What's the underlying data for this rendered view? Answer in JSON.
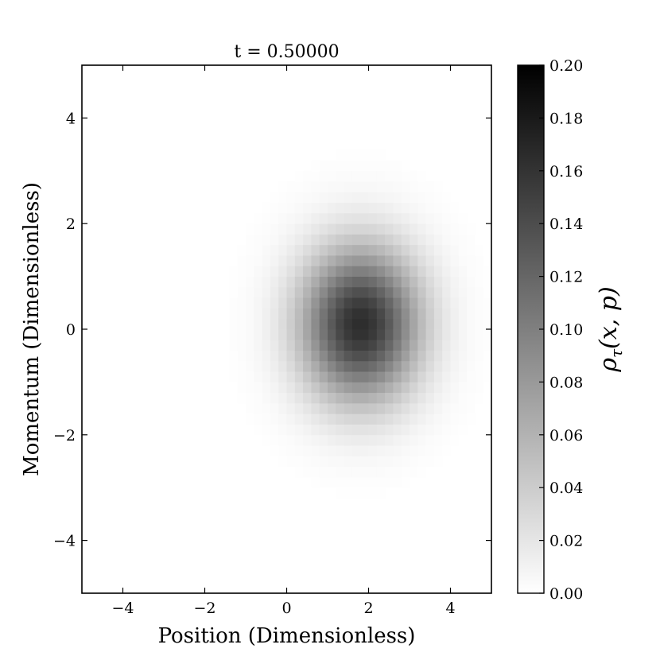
{
  "chart_data": {
    "type": "heatmap",
    "title": "t = 0.50000",
    "xlabel": "Position (Dimensionless)",
    "ylabel": "Momentum (Dimensionless)",
    "xlim": [
      -5,
      5
    ],
    "ylim": [
      -5,
      5
    ],
    "x_ticks": [
      -4,
      -2,
      0,
      2,
      4
    ],
    "y_ticks": [
      -4,
      -2,
      0,
      2,
      4
    ],
    "x_tick_labels": [
      "−4",
      "−2",
      "0",
      "2",
      "4"
    ],
    "y_tick_labels": [
      "−4",
      "−2",
      "0",
      "2",
      "4"
    ],
    "colormap": "gray_r",
    "colorbar": {
      "label": "ρ_τ(x, p)",
      "label_main": "ρ",
      "label_sub": "τ",
      "label_rest": "(x, p)",
      "vmin": 0.0,
      "vmax": 0.2,
      "ticks": [
        0.0,
        0.02,
        0.04,
        0.06,
        0.08,
        0.1,
        0.12,
        0.14,
        0.16,
        0.18,
        0.2
      ],
      "tick_labels": [
        "0.00",
        "0.02",
        "0.04",
        "0.06",
        "0.08",
        "0.10",
        "0.12",
        "0.14",
        "0.16",
        "0.18",
        "0.20"
      ]
    },
    "grid": false,
    "distribution": {
      "shape": "gaussian",
      "center_x": 1.8,
      "center_p": 0.1,
      "sigma_x": 1.0,
      "sigma_p": 1.0,
      "peak": 0.165,
      "cells_per_axis": 50
    }
  }
}
